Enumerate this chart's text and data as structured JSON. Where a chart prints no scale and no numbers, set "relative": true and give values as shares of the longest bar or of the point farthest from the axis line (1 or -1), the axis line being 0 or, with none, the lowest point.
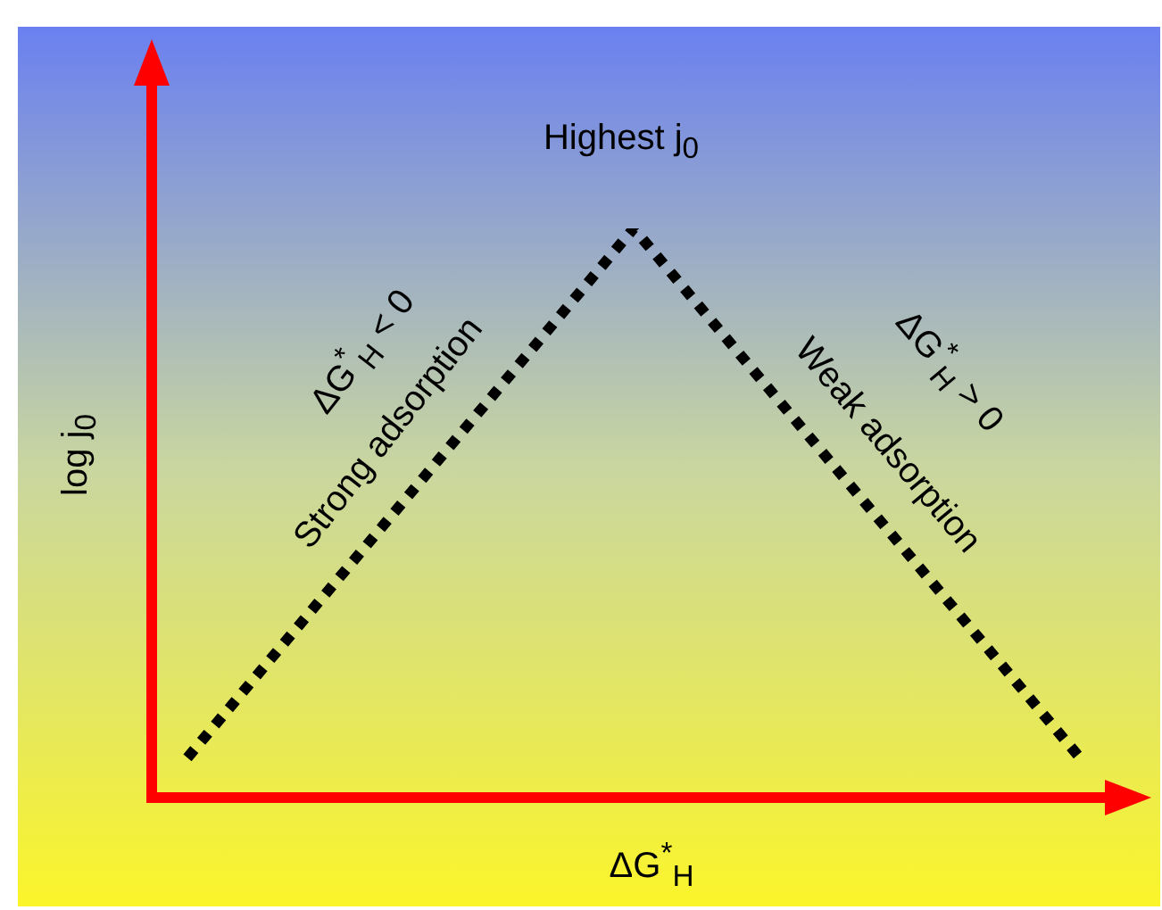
{
  "chart_data": {
    "type": "line",
    "relative": true,
    "categories": [
      null,
      null,
      null
    ],
    "series": [
      {
        "color": "#000000",
        "values": [
          0.07,
          1,
          0.07
        ]
      }
    ],
    "line_style": "dotted",
    "marker": "none",
    "legend": false,
    "xlabel": "ΔG$^{*}$$_{H}$",
    "ylabel": "log j$_{0}$",
    "annotations": [
      "Highest j$_{0}$",
      "ΔG$^{*}$$_{H}$ < 0",
      "Strong adsorption",
      "ΔG$^{*}$$_{H}$ > 0",
      "Weak adsorption"
    ]
  }
}
